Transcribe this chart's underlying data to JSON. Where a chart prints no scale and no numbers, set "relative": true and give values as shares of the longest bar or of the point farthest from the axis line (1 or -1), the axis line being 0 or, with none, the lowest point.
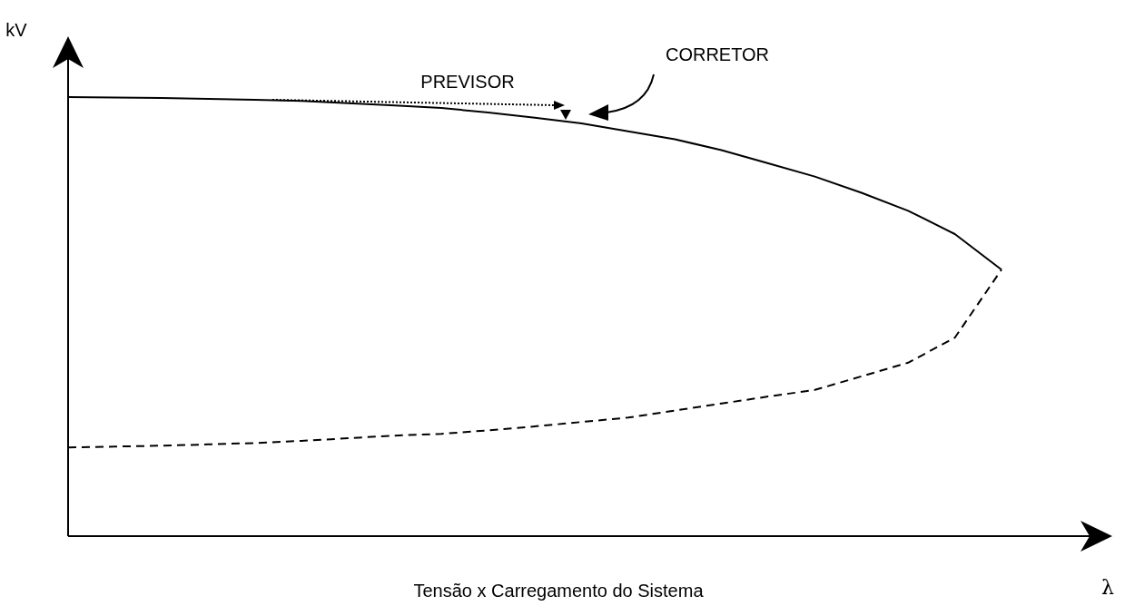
{
  "chart_data": {
    "type": "line",
    "relative": true,
    "title": "Tensão x Carregamento do Sistema",
    "xlabel": "λ",
    "ylabel": "kV",
    "categories": [
      null,
      null,
      null,
      null,
      null,
      null,
      null,
      null,
      null,
      null,
      null,
      null,
      null,
      null,
      null,
      null,
      null,
      null,
      null,
      null,
      null
    ],
    "series": [
      {
        "color": "#000000",
        "line_style": "solid",
        "values": [
          1,
          0.999,
          0.998,
          0.996,
          0.994,
          0.991,
          0.986,
          0.981,
          0.975,
          0.965,
          0.953,
          0.94,
          0.922,
          0.904,
          0.879,
          0.849,
          0.819,
          0.782,
          0.741,
          0.688,
          0.607
        ]
      },
      {
        "color": "#000000",
        "line_style": "dashed",
        "values": [
          0.202,
          0.204,
          0.206,
          0.209,
          0.212,
          0.217,
          0.223,
          0.229,
          0.233,
          0.241,
          0.25,
          0.26,
          0.27,
          0.286,
          0.302,
          0.318,
          0.333,
          0.364,
          0.395,
          0.452,
          0.607
        ]
      }
    ],
    "annotations": [
      "PREVISOR",
      "CORRETOR"
    ]
  }
}
